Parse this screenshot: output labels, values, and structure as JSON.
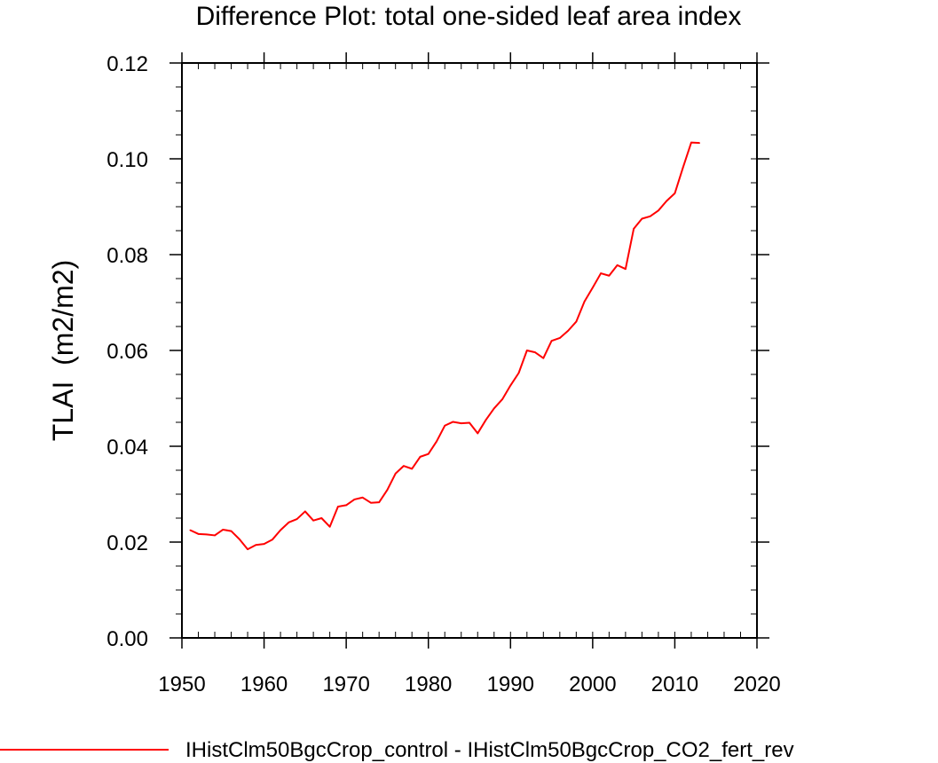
{
  "chart_data": {
    "type": "line",
    "title": "Difference Plot: total one-sided leaf area index",
    "xlabel": "",
    "ylabel": "TLAI  (m2/m2)",
    "xlim": [
      1950,
      2020
    ],
    "ylim": [
      0.0,
      0.12
    ],
    "x_ticks": [
      "1950",
      "1960",
      "1970",
      "1980",
      "1990",
      "2000",
      "2010",
      "2020"
    ],
    "y_ticks": [
      "0.00",
      "0.02",
      "0.04",
      "0.06",
      "0.08",
      "0.10",
      "0.12"
    ],
    "grid": false,
    "legend_position": "bottom",
    "series": [
      {
        "name": "IHistClm50BgcCrop_control - IHistClm50BgcCrop_CO2_fert_rev",
        "color": "#ff0000",
        "x": [
          1951,
          1952,
          1953,
          1954,
          1955,
          1956,
          1957,
          1958,
          1959,
          1960,
          1961,
          1962,
          1963,
          1964,
          1965,
          1966,
          1967,
          1968,
          1969,
          1970,
          1971,
          1972,
          1973,
          1974,
          1975,
          1976,
          1977,
          1978,
          1979,
          1980,
          1981,
          1982,
          1983,
          1984,
          1985,
          1986,
          1987,
          1988,
          1989,
          1990,
          1991,
          1992,
          1993,
          1994,
          1995,
          1996,
          1997,
          1998,
          1999,
          2000,
          2001,
          2002,
          2003,
          2004,
          2005,
          2006,
          2007,
          2008,
          2009,
          2010,
          2011,
          2012,
          2013
        ],
        "values": [
          0.0225,
          0.0217,
          0.0216,
          0.0214,
          0.0226,
          0.0223,
          0.0206,
          0.0185,
          0.0194,
          0.0196,
          0.0205,
          0.0225,
          0.0241,
          0.0248,
          0.0264,
          0.0245,
          0.025,
          0.0232,
          0.0274,
          0.0277,
          0.0289,
          0.0293,
          0.0282,
          0.0283,
          0.0309,
          0.0343,
          0.0359,
          0.0353,
          0.0378,
          0.0384,
          0.041,
          0.0443,
          0.0451,
          0.0448,
          0.0449,
          0.0427,
          0.0455,
          0.0479,
          0.0498,
          0.0527,
          0.0553,
          0.06,
          0.0596,
          0.0584,
          0.062,
          0.0626,
          0.0641,
          0.066,
          0.0702,
          0.0731,
          0.0761,
          0.0756,
          0.0778,
          0.077,
          0.0854,
          0.0875,
          0.088,
          0.0892,
          0.0912,
          0.0928,
          0.0982,
          0.1034,
          0.1033
        ]
      }
    ]
  },
  "colors": {
    "series": "#ff0000",
    "axis": "#000000",
    "background": "#ffffff"
  }
}
